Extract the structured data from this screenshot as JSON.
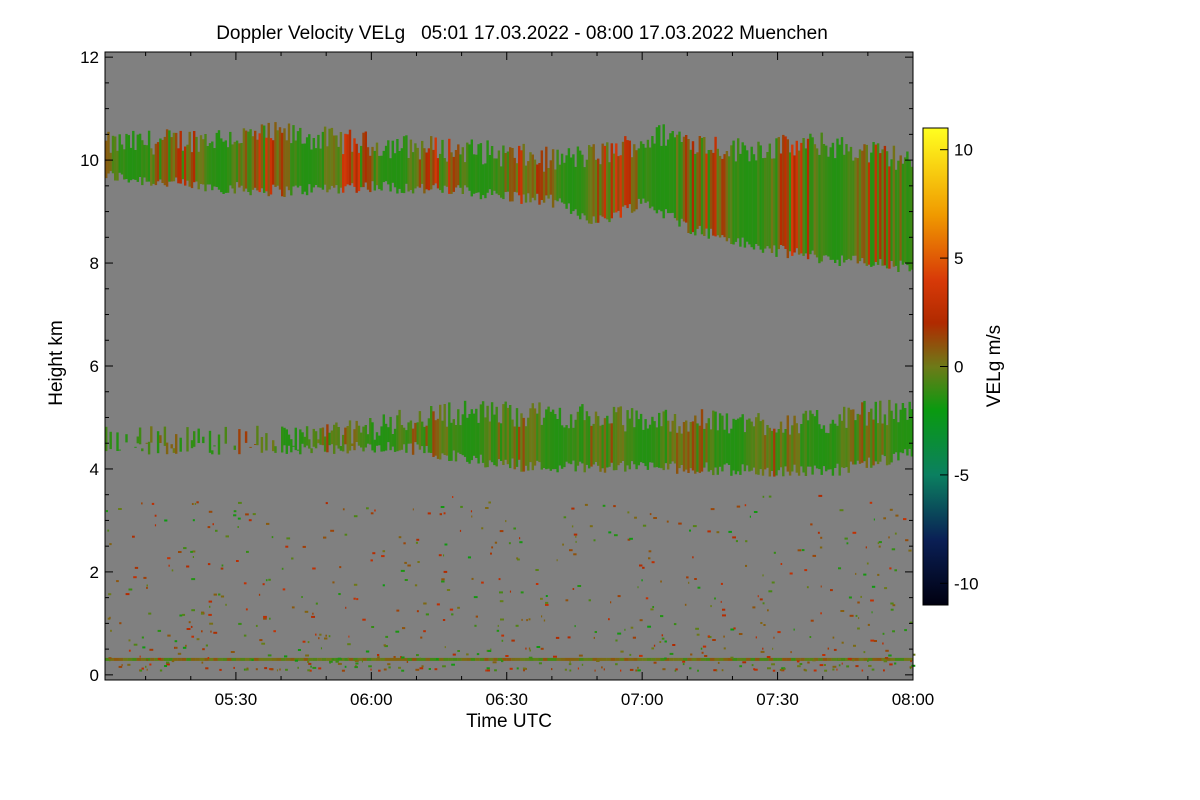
{
  "chart_data": {
    "type": "heatmap",
    "title": "Doppler Velocity VELg   05:01 17.03.2022 - 08:00 17.03.2022 Muenchen",
    "xlabel": "Time UTC",
    "ylabel": "Height km",
    "colorbar_label": "VELg m/s",
    "xlim_minutes_utc": [
      301,
      480
    ],
    "ylim_km": [
      -0.1,
      12.1
    ],
    "x_ticks": [
      {
        "minute": 330,
        "label": "05:30"
      },
      {
        "minute": 360,
        "label": "06:00"
      },
      {
        "minute": 390,
        "label": "06:30"
      },
      {
        "minute": 420,
        "label": "07:00"
      },
      {
        "minute": 450,
        "label": "07:30"
      },
      {
        "minute": 480,
        "label": "08:00"
      }
    ],
    "y_ticks": [
      {
        "value": 0,
        "label": "0"
      },
      {
        "value": 2,
        "label": "2"
      },
      {
        "value": 4,
        "label": "4"
      },
      {
        "value": 6,
        "label": "6"
      },
      {
        "value": 8,
        "label": "8"
      },
      {
        "value": 10,
        "label": "10"
      },
      {
        "value": 12,
        "label": "12"
      }
    ],
    "colorbar_range": [
      -11,
      11
    ],
    "colorbar_ticks": [
      {
        "value": 10,
        "label": "10"
      },
      {
        "value": 5,
        "label": "5"
      },
      {
        "value": 0,
        "label": "0"
      },
      {
        "value": -5,
        "label": "-5"
      },
      {
        "value": -10,
        "label": "-10"
      }
    ],
    "colormap_stops": [
      {
        "value": -11,
        "color": "#000010"
      },
      {
        "value": -8,
        "color": "#0a1f55"
      },
      {
        "value": -5,
        "color": "#0b8060"
      },
      {
        "value": -2,
        "color": "#0a9a10"
      },
      {
        "value": 0,
        "color": "#6e7a18"
      },
      {
        "value": 2,
        "color": "#b02a00"
      },
      {
        "value": 4,
        "color": "#d83a08"
      },
      {
        "value": 7,
        "color": "#f09a00"
      },
      {
        "value": 11,
        "color": "#ffff20"
      }
    ],
    "background_color": "#808080",
    "layers": [
      {
        "name": "high cirrus cloud",
        "time_min": [
          301,
          480
        ],
        "top_km": [
          [
            301,
            10.3
          ],
          [
            320,
            10.4
          ],
          [
            340,
            10.5
          ],
          [
            360,
            10.3
          ],
          [
            380,
            10.2
          ],
          [
            400,
            10.0
          ],
          [
            410,
            10.1
          ],
          [
            425,
            10.5
          ],
          [
            440,
            10.2
          ],
          [
            460,
            10.3
          ],
          [
            480,
            10.0
          ]
        ],
        "base_km": [
          [
            301,
            9.7
          ],
          [
            320,
            9.5
          ],
          [
            340,
            9.4
          ],
          [
            360,
            9.5
          ],
          [
            380,
            9.4
          ],
          [
            400,
            9.2
          ],
          [
            410,
            8.8
          ],
          [
            420,
            9.2
          ],
          [
            430,
            8.7
          ],
          [
            445,
            8.3
          ],
          [
            460,
            8.1
          ],
          [
            470,
            8.0
          ],
          [
            480,
            7.9
          ]
        ],
        "velocity_ms": [
          -1.5,
          2.5
        ]
      },
      {
        "name": "mid-level cloud",
        "time_min": [
          301,
          480
        ],
        "top_km": [
          [
            301,
            4.6
          ],
          [
            340,
            4.6
          ],
          [
            355,
            4.7
          ],
          [
            370,
            5.0
          ],
          [
            380,
            5.1
          ],
          [
            400,
            5.05
          ],
          [
            420,
            4.95
          ],
          [
            440,
            4.9
          ],
          [
            460,
            4.9
          ],
          [
            470,
            5.1
          ],
          [
            480,
            5.1
          ]
        ],
        "base_km": [
          [
            301,
            4.4
          ],
          [
            340,
            4.4
          ],
          [
            370,
            4.4
          ],
          [
            380,
            4.2
          ],
          [
            395,
            4.05
          ],
          [
            420,
            4.05
          ],
          [
            450,
            3.95
          ],
          [
            465,
            4.0
          ],
          [
            480,
            4.3
          ]
        ],
        "velocity_ms": [
          -1.5,
          1.0
        ]
      },
      {
        "name": "near-surface band",
        "time_min": [
          301,
          480
        ],
        "height_km": 0.3,
        "velocity_ms": [
          -1.0,
          1.0
        ]
      },
      {
        "name": "scattered boundary layer echoes",
        "time_min": [
          301,
          480
        ],
        "height_km": [
          0.1,
          3.5
        ],
        "velocity_ms": [
          -2.0,
          3.0
        ]
      }
    ]
  }
}
